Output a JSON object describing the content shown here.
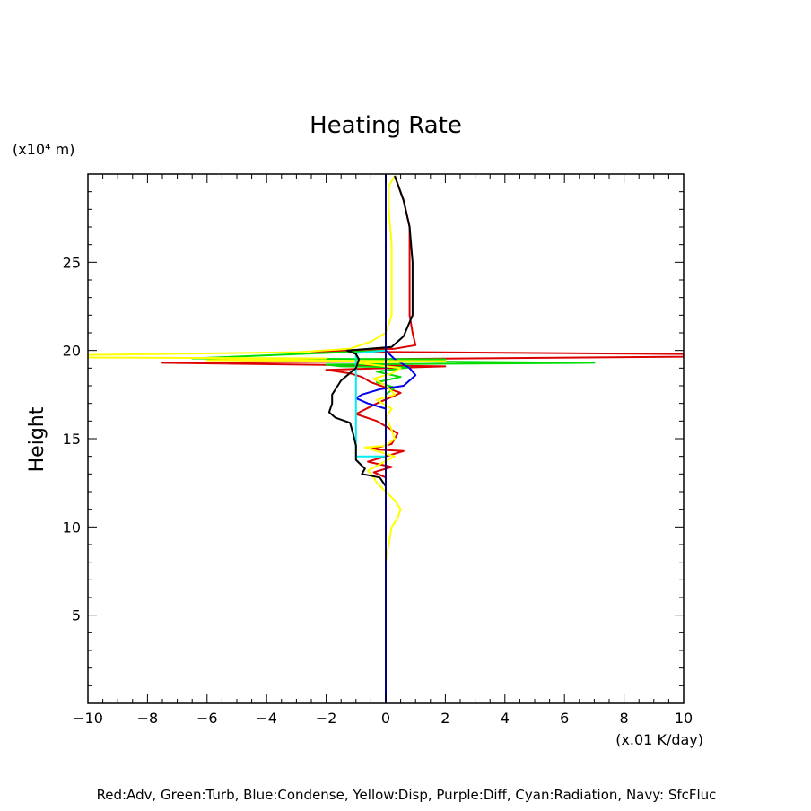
{
  "chart_data": {
    "type": "line",
    "title": "Heating Rate",
    "xlabel": "",
    "ylabel": "Height",
    "x_unit": "(x.01 K/day)",
    "y_unit": "(x10⁴ m)",
    "xlim": [
      -10,
      10
    ],
    "ylim": [
      0,
      30
    ],
    "x_ticks": [
      -10,
      -8,
      -6,
      -4,
      -2,
      0,
      2,
      4,
      6,
      8,
      10
    ],
    "x_tick_labels": [
      "−10",
      "−8",
      "−6",
      "−4",
      "−2",
      "0",
      "2",
      "4",
      "6",
      "8",
      "10"
    ],
    "y_ticks": [
      5,
      10,
      15,
      20,
      25
    ],
    "y_tick_labels": [
      "5",
      "10",
      "15",
      "20",
      "25"
    ],
    "grid": false,
    "caption": "Red:Adv, Green:Turb, Blue:Condense, Yellow:Disp, Purple:Diff, Cyan:Radiation, Navy: SfcFluc",
    "series": [
      {
        "name": "Red:Adv",
        "color": "#dd0000",
        "points": [
          [
            0.3,
            29.9
          ],
          [
            0.6,
            28.5
          ],
          [
            0.8,
            27
          ],
          [
            0.8,
            25
          ],
          [
            0.8,
            22
          ],
          [
            0.9,
            21
          ],
          [
            1.0,
            20.3
          ],
          [
            0.3,
            20.1
          ],
          [
            -2.5,
            19.95
          ],
          [
            10,
            19.8
          ],
          [
            10,
            19.65
          ],
          [
            -1,
            19.5
          ],
          [
            2,
            19.4
          ],
          [
            -7.5,
            19.3
          ],
          [
            2.0,
            19.1
          ],
          [
            -2,
            18.9
          ],
          [
            -1.2,
            18.7
          ],
          [
            -0.8,
            18.5
          ],
          [
            -0.5,
            18.2
          ],
          [
            0.5,
            17.6
          ],
          [
            -0.3,
            17.0
          ],
          [
            -1.0,
            16.4
          ],
          [
            -0.3,
            16.0
          ],
          [
            0.4,
            15.3
          ],
          [
            0.2,
            14.7
          ],
          [
            -0.5,
            14.4
          ],
          [
            0.6,
            14.3
          ],
          [
            0,
            14.0
          ],
          [
            -0.6,
            13.7
          ],
          [
            0.2,
            13.4
          ],
          [
            -0.4,
            13.1
          ],
          [
            0,
            12.8
          ]
        ]
      },
      {
        "name": "Green:Turb",
        "color": "#00dd00",
        "points": [
          [
            0,
            20.0
          ],
          [
            -6.5,
            19.55
          ],
          [
            2,
            19.5
          ],
          [
            -1,
            19.4
          ],
          [
            7,
            19.3
          ],
          [
            -2,
            19.2
          ],
          [
            -1.5,
            19.1
          ],
          [
            0.8,
            19.05
          ],
          [
            -0.3,
            18.8
          ],
          [
            0.5,
            18.5
          ],
          [
            -0.3,
            18.2
          ],
          [
            0.3,
            17.9
          ],
          [
            0,
            17.5
          ],
          [
            0,
            15
          ],
          [
            0,
            14.5
          ],
          [
            0,
            14.0
          ],
          [
            0,
            13.5
          ]
        ]
      },
      {
        "name": "Blue:Condense",
        "color": "#0000ee",
        "points": [
          [
            0,
            20.0
          ],
          [
            0.3,
            19.5
          ],
          [
            0.8,
            19.0
          ],
          [
            1.0,
            18.6
          ],
          [
            0.6,
            18.0
          ],
          [
            -0.2,
            17.8
          ],
          [
            -0.8,
            17.5
          ],
          [
            -1.0,
            17.3
          ],
          [
            -0.6,
            17.0
          ],
          [
            0,
            16.7
          ]
        ]
      },
      {
        "name": "Yellow:Disp",
        "color": "#ffff00",
        "points": [
          [
            0.3,
            29.9
          ],
          [
            0.1,
            29.3
          ],
          [
            0.1,
            28
          ],
          [
            0.2,
            26
          ],
          [
            0.2,
            23
          ],
          [
            0.2,
            22
          ],
          [
            0.0,
            21
          ],
          [
            -0.5,
            20.5
          ],
          [
            -1.2,
            20.1
          ],
          [
            -3,
            19.9
          ],
          [
            -10,
            19.75
          ],
          [
            -10,
            19.6
          ],
          [
            -2,
            19.55
          ],
          [
            -6,
            19.45
          ],
          [
            2,
            19.4
          ],
          [
            -1,
            19.3
          ],
          [
            0.5,
            19.0
          ],
          [
            0.2,
            18.7
          ],
          [
            -0.4,
            18.4
          ],
          [
            0,
            18.0
          ],
          [
            0.3,
            17.5
          ],
          [
            -0.3,
            17.2
          ],
          [
            0.2,
            16.7
          ],
          [
            0,
            16.2
          ],
          [
            0.2,
            15.5
          ],
          [
            0.3,
            15.0
          ],
          [
            0,
            14.6
          ],
          [
            -0.7,
            14.5
          ],
          [
            0.3,
            14.0
          ],
          [
            -0.6,
            13.2
          ],
          [
            -0.4,
            12.8
          ],
          [
            -0.3,
            12.5
          ],
          [
            0,
            12.0
          ],
          [
            0.3,
            11.5
          ],
          [
            0.5,
            11
          ],
          [
            0.4,
            10.5
          ],
          [
            0.2,
            10
          ],
          [
            0.1,
            9
          ],
          [
            0,
            8
          ]
        ]
      },
      {
        "name": "Cyan:Radiation",
        "color": "#00eeee",
        "points": [
          [
            0,
            20.0
          ],
          [
            -1,
            19.85
          ],
          [
            -1,
            14.0
          ],
          [
            0,
            14.0
          ]
        ]
      },
      {
        "name": "Black",
        "color": "#000000",
        "points": [
          [
            0.3,
            29.9
          ],
          [
            0.6,
            28.5
          ],
          [
            0.8,
            27
          ],
          [
            0.9,
            25
          ],
          [
            0.9,
            22
          ],
          [
            0.6,
            20.8
          ],
          [
            0.2,
            20.2
          ],
          [
            -1.3,
            20.0
          ],
          [
            -1.0,
            19.8
          ],
          [
            -0.9,
            19.5
          ],
          [
            -1.0,
            19.0
          ],
          [
            -1.5,
            18.3
          ],
          [
            -1.8,
            17.5
          ],
          [
            -1.8,
            17.0
          ],
          [
            -1.9,
            16.5
          ],
          [
            -1.7,
            16.2
          ],
          [
            -1.2,
            15.9
          ],
          [
            -1.1,
            15.3
          ],
          [
            -1.0,
            14.6
          ],
          [
            -1.0,
            13.8
          ],
          [
            -0.7,
            13.3
          ],
          [
            -0.8,
            13.0
          ],
          [
            -0.2,
            12.8
          ],
          [
            0,
            12.3
          ],
          [
            0,
            10
          ],
          [
            0,
            8
          ]
        ]
      },
      {
        "name": "Navy: SfcFluc",
        "color": "#000080",
        "points": [
          [
            0,
            0
          ],
          [
            0,
            30
          ]
        ]
      }
    ]
  }
}
